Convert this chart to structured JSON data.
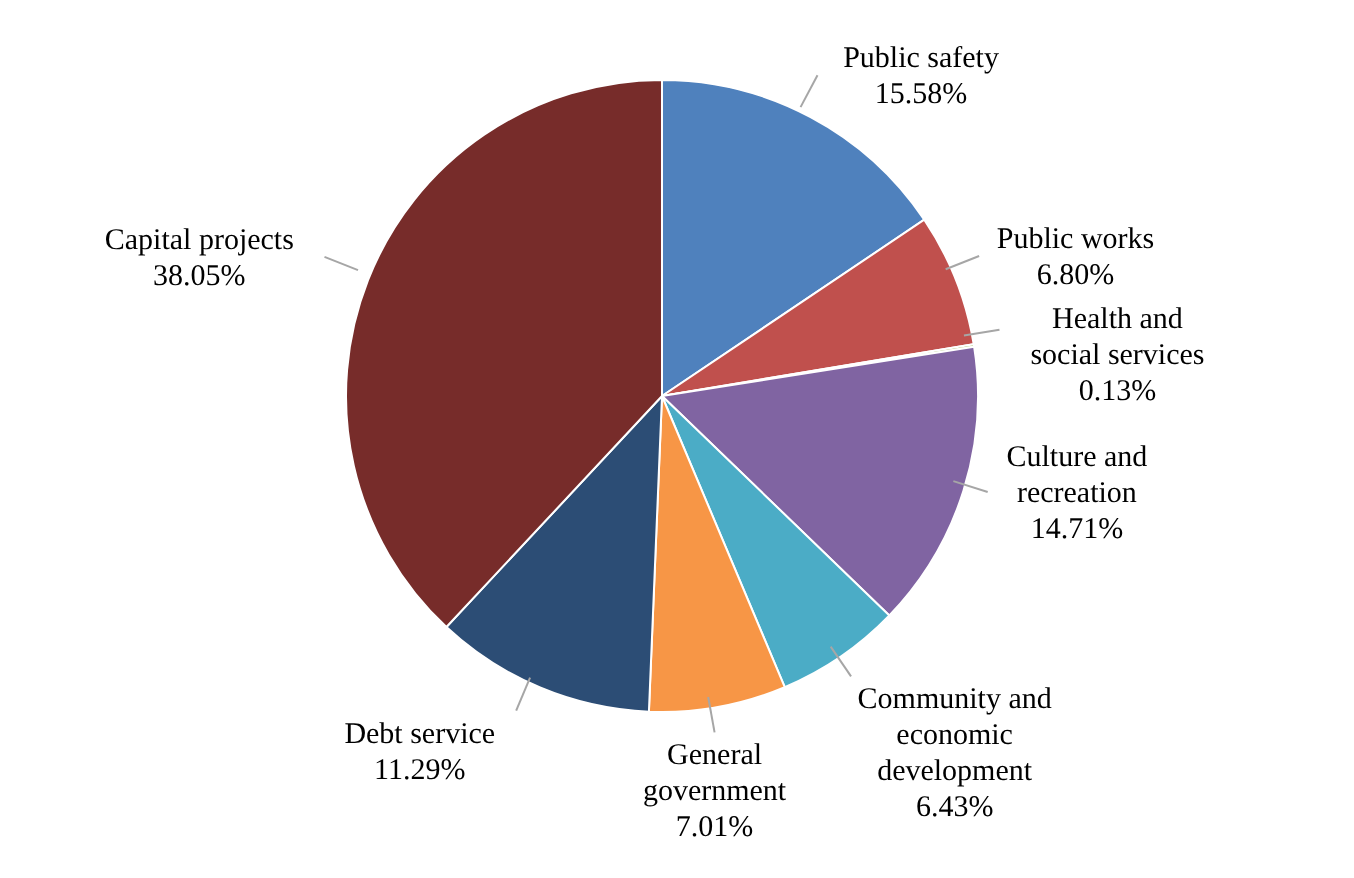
{
  "chart_data": {
    "type": "pie",
    "categories": [
      "Public safety",
      "Public works",
      "Health and social services",
      "Culture and recreation",
      "Community and economic development",
      "General government",
      "Debt service",
      "Capital projects"
    ],
    "values": [
      15.58,
      6.8,
      0.13,
      14.71,
      6.43,
      7.01,
      11.29,
      38.05
    ],
    "value_labels": [
      "15.58%",
      "6.80%",
      "0.13%",
      "14.71%",
      "6.43%",
      "7.01%",
      "11.29%",
      "38.05%"
    ],
    "colors": [
      "#4f81bd",
      "#c0504d",
      "#9bbb59",
      "#8064a2",
      "#4bacc6",
      "#f79646",
      "#2c4d75",
      "#772c2a"
    ],
    "legend": false
  }
}
